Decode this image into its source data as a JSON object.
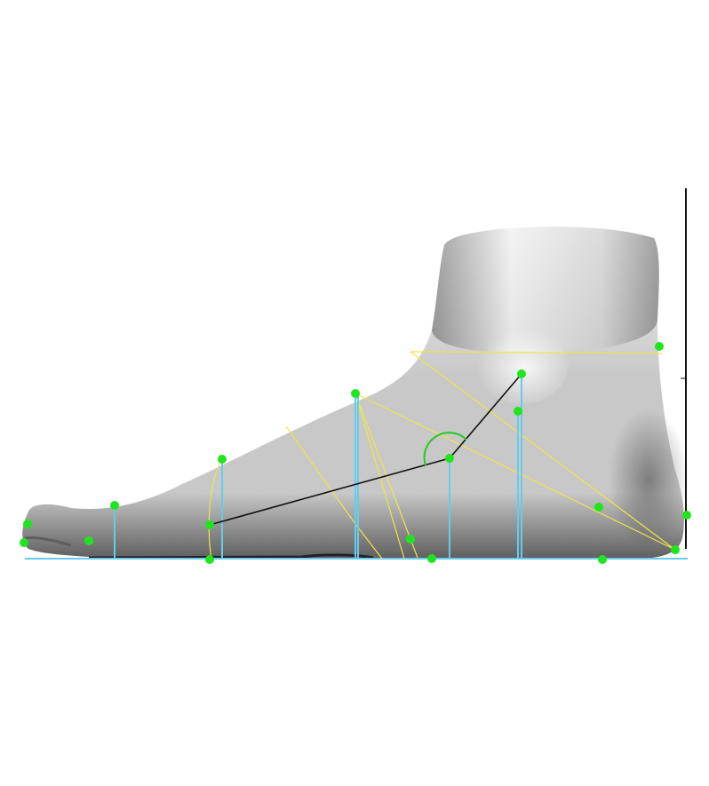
{
  "viewer": {
    "background_color": "#ffffff",
    "model": {
      "shape": "foot-side-view",
      "surface_color": "#c8c8c8",
      "surface_highlight": "#f4f4f4",
      "surface_shadow": "#5e5e5e"
    },
    "colors": {
      "landmark": "#1ee61e",
      "measurement_vertical": "#66ccee",
      "ground_line": "#66ccee",
      "girth_curves": "#ece64a",
      "arch_lines": "#111111",
      "angle_arc": "#22cc22",
      "reference_axis": "#111111"
    }
  }
}
